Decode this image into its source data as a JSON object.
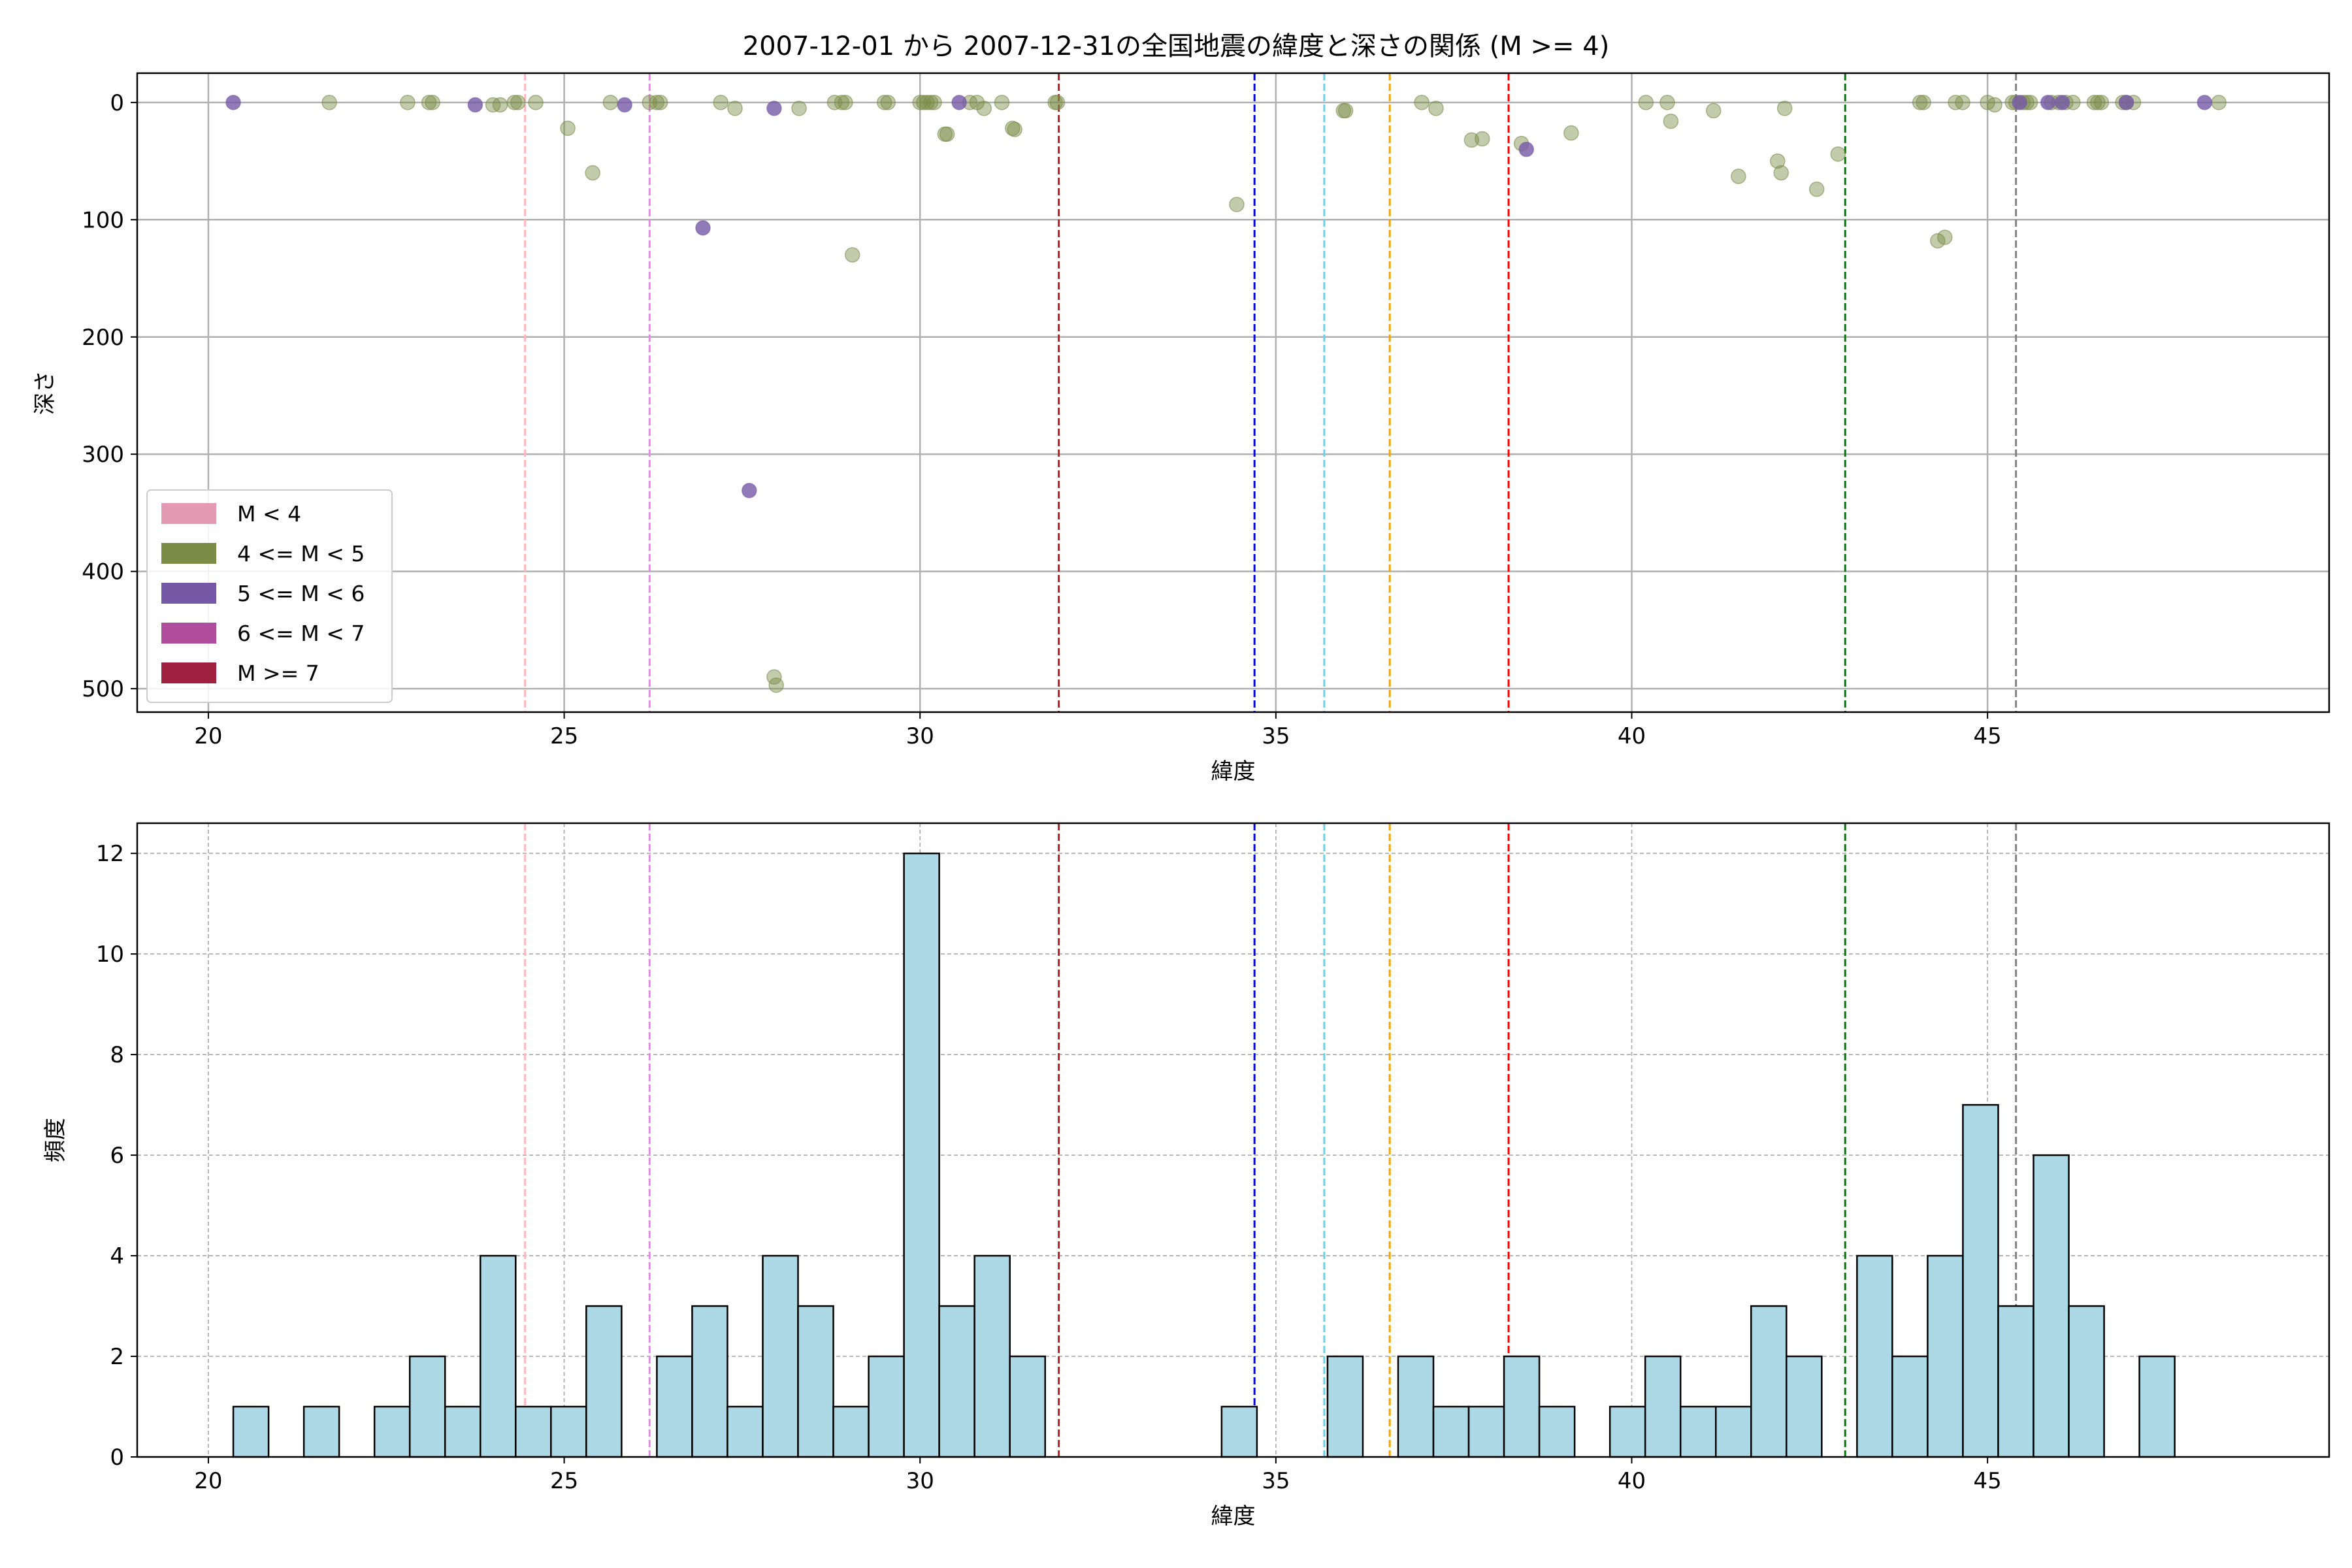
{
  "figure_title": "2007-12-01 から 2007-12-31の全国地震の緯度と深さの関係 (M >= 4)",
  "chart_data": [
    {
      "type": "scatter",
      "xlabel": "緯度",
      "ylabel": "深さ",
      "xlim": [
        19,
        49.8
      ],
      "ylim": [
        520,
        -25
      ],
      "y_inverted": true,
      "xticks": [
        20,
        25,
        30,
        35,
        40,
        45
      ],
      "yticks": [
        0,
        100,
        200,
        300,
        400,
        500
      ],
      "grid": true,
      "legend_position": "lower-left",
      "legend": [
        {
          "label": "M < 4",
          "color": "#e59ab3"
        },
        {
          "label": "4 <= M < 5",
          "color": "#7b8c47"
        },
        {
          "label": "5 <= M < 6",
          "color": "#7659a6"
        },
        {
          "label": "6 <= M < 7",
          "color": "#b04c9c"
        },
        {
          "label": "M >= 7",
          "color": "#a0203f"
        }
      ],
      "reference_lines": [
        {
          "x": 24.45,
          "color": "#ffb6c1"
        },
        {
          "x": 26.2,
          "color": "#ee82ee"
        },
        {
          "x": 31.95,
          "color": "#b22222"
        },
        {
          "x": 34.7,
          "color": "#0000ff"
        },
        {
          "x": 35.68,
          "color": "#6ccfe6"
        },
        {
          "x": 36.6,
          "color": "#f0a30a"
        },
        {
          "x": 38.27,
          "color": "#ff0000"
        },
        {
          "x": 43.0,
          "color": "#008000"
        },
        {
          "x": 45.4,
          "color": "#808080"
        }
      ],
      "series": [
        {
          "name": "4 <= M < 5",
          "color": "#7b8c47",
          "points": [
            [
              21.7,
              0
            ],
            [
              22.8,
              0
            ],
            [
              23.1,
              0
            ],
            [
              23.15,
              0
            ],
            [
              24.0,
              2
            ],
            [
              24.1,
              2
            ],
            [
              24.3,
              0
            ],
            [
              24.35,
              0
            ],
            [
              24.6,
              0
            ],
            [
              25.05,
              22
            ],
            [
              25.4,
              60
            ],
            [
              25.65,
              0
            ],
            [
              26.2,
              0
            ],
            [
              26.3,
              0
            ],
            [
              26.35,
              0
            ],
            [
              27.2,
              0
            ],
            [
              27.4,
              5
            ],
            [
              28.3,
              5
            ],
            [
              28.8,
              0
            ],
            [
              28.9,
              0
            ],
            [
              28.95,
              0
            ],
            [
              29.05,
              130
            ],
            [
              29.5,
              0
            ],
            [
              29.55,
              0
            ],
            [
              30.0,
              0
            ],
            [
              30.05,
              0
            ],
            [
              30.1,
              0
            ],
            [
              30.15,
              0
            ],
            [
              30.2,
              0
            ],
            [
              30.35,
              27
            ],
            [
              30.38,
              27
            ],
            [
              30.7,
              0
            ],
            [
              30.8,
              0
            ],
            [
              30.9,
              5
            ],
            [
              31.15,
              0
            ],
            [
              31.3,
              22
            ],
            [
              31.33,
              23
            ],
            [
              31.9,
              0
            ],
            [
              31.93,
              0
            ],
            [
              34.45,
              87
            ],
            [
              35.95,
              7
            ],
            [
              35.98,
              7
            ],
            [
              37.05,
              0
            ],
            [
              37.25,
              5
            ],
            [
              37.75,
              32
            ],
            [
              37.9,
              31
            ],
            [
              38.45,
              35
            ],
            [
              39.15,
              26
            ],
            [
              40.2,
              0
            ],
            [
              40.5,
              0
            ],
            [
              40.55,
              16
            ],
            [
              41.15,
              7
            ],
            [
              41.5,
              63
            ],
            [
              42.05,
              50
            ],
            [
              42.1,
              60
            ],
            [
              42.15,
              5
            ],
            [
              42.6,
              74
            ],
            [
              42.9,
              44
            ],
            [
              44.05,
              0
            ],
            [
              44.1,
              0
            ],
            [
              44.3,
              118
            ],
            [
              44.4,
              115
            ],
            [
              44.55,
              0
            ],
            [
              44.65,
              0
            ],
            [
              45.0,
              0
            ],
            [
              45.1,
              2
            ],
            [
              45.35,
              0
            ],
            [
              45.4,
              0
            ],
            [
              45.5,
              0
            ],
            [
              45.55,
              0
            ],
            [
              45.6,
              0
            ],
            [
              45.9,
              0
            ],
            [
              46.0,
              0
            ],
            [
              46.1,
              0
            ],
            [
              46.2,
              0
            ],
            [
              46.5,
              0
            ],
            [
              46.55,
              0
            ],
            [
              46.6,
              0
            ],
            [
              46.9,
              0
            ],
            [
              46.95,
              0
            ],
            [
              47.05,
              0
            ],
            [
              48.25,
              0
            ],
            [
              27.95,
              490
            ],
            [
              27.98,
              497
            ]
          ]
        },
        {
          "name": "5 <= M < 6",
          "color": "#7659a6",
          "points": [
            [
              20.35,
              0
            ],
            [
              23.75,
              2
            ],
            [
              25.85,
              2
            ],
            [
              26.95,
              107
            ],
            [
              27.6,
              331
            ],
            [
              27.95,
              5
            ],
            [
              30.55,
              0
            ],
            [
              38.52,
              40
            ],
            [
              45.45,
              0
            ],
            [
              45.85,
              0
            ],
            [
              46.05,
              0
            ],
            [
              46.95,
              0
            ],
            [
              48.05,
              0
            ]
          ]
        }
      ]
    },
    {
      "type": "bar",
      "xlabel": "緯度",
      "ylabel": "頻度",
      "xlim": [
        19,
        49.8
      ],
      "ylim": [
        0,
        12.6
      ],
      "xticks": [
        20,
        25,
        30,
        35,
        40,
        45
      ],
      "yticks": [
        0,
        2,
        4,
        6,
        8,
        10,
        12
      ],
      "grid": true,
      "bin_start": 20.35,
      "bin_width": 0.496,
      "values": [
        1,
        0,
        1,
        0,
        1,
        2,
        1,
        4,
        1,
        1,
        3,
        0,
        2,
        3,
        1,
        4,
        3,
        1,
        2,
        12,
        3,
        4,
        2,
        0,
        0,
        0,
        0,
        0,
        1,
        0,
        0,
        2,
        0,
        2,
        1,
        1,
        2,
        1,
        0,
        1,
        2,
        1,
        1,
        3,
        2,
        0,
        4,
        2,
        4,
        7,
        3,
        6,
        3,
        0,
        2
      ],
      "bar_color": "#add8e6",
      "edge_color": "#000000",
      "reference_lines": [
        {
          "x": 24.45,
          "color": "#ffb6c1"
        },
        {
          "x": 26.2,
          "color": "#ee82ee"
        },
        {
          "x": 31.95,
          "color": "#b22222"
        },
        {
          "x": 34.7,
          "color": "#0000ff"
        },
        {
          "x": 35.68,
          "color": "#6ccfe6"
        },
        {
          "x": 36.6,
          "color": "#f0a30a"
        },
        {
          "x": 38.27,
          "color": "#ff0000"
        },
        {
          "x": 43.0,
          "color": "#008000"
        },
        {
          "x": 45.4,
          "color": "#808080"
        }
      ]
    }
  ]
}
